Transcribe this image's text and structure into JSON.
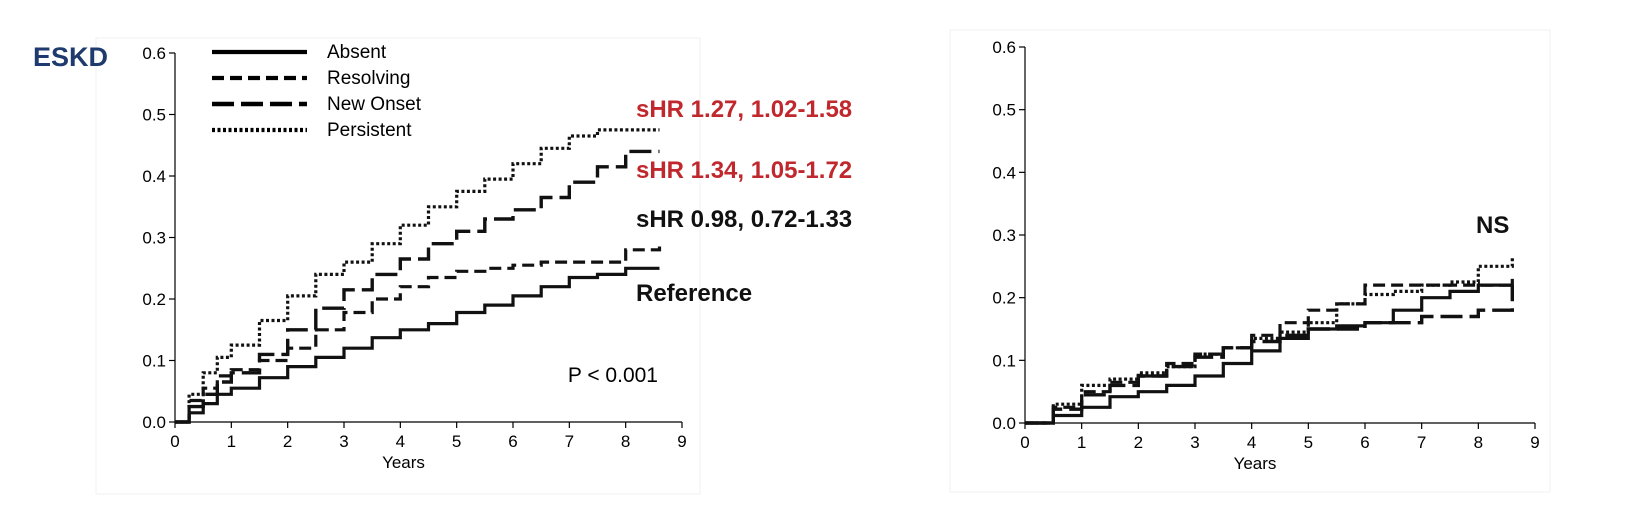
{
  "page": {
    "label_left": "ESKD"
  },
  "legend": [
    "Absent",
    "Resolving",
    "New Onset",
    "Persistent"
  ],
  "styles": {
    "Absent": {
      "dash": "",
      "width": 3.2,
      "color": "#111111"
    },
    "Resolving": {
      "dash": "12 6",
      "width": 3.2,
      "color": "#333333"
    },
    "New Onset": {
      "dash": "22 7",
      "width": 3.4,
      "color": "#222222"
    },
    "Persistent": {
      "dash": "3 2.5",
      "width": 3.2,
      "color": "#222222"
    }
  },
  "annotation_colors": {
    "red": "#c0282d",
    "black": "#111111"
  },
  "chart_data": [
    {
      "type": "line",
      "step": true,
      "xlabel": "Years",
      "ylabel": "",
      "xlim": [
        0,
        9
      ],
      "ylim": [
        0,
        0.6
      ],
      "xticks": [
        "0",
        "1",
        "2",
        "3",
        "4",
        "5",
        "6",
        "7",
        "8",
        "9"
      ],
      "yticks": [
        "0.0",
        "0.1",
        "0.2",
        "0.3",
        "0.4",
        "0.5",
        "0.6"
      ],
      "legend_position": "top-left",
      "p_value": "P < 0.001",
      "annotations": [
        {
          "text": "sHR 1.27, 1.02-1.58",
          "series": "Persistent",
          "color": "red"
        },
        {
          "text": "sHR 1.34, 1.05-1.72",
          "series": "New Onset",
          "color": "red"
        },
        {
          "text": "sHR 0.98, 0.72-1.33",
          "series": "Resolving",
          "color": "black"
        },
        {
          "text": "Reference",
          "series": "Absent",
          "color": "black"
        }
      ],
      "x": [
        0,
        0.25,
        0.5,
        0.75,
        1,
        1.5,
        2,
        2.5,
        3,
        3.5,
        4,
        4.5,
        5,
        5.5,
        6,
        6.5,
        7,
        7.5,
        8,
        8.6
      ],
      "series": [
        {
          "name": "Absent",
          "values": [
            0,
            0.015,
            0.03,
            0.045,
            0.055,
            0.072,
            0.09,
            0.105,
            0.12,
            0.137,
            0.15,
            0.16,
            0.178,
            0.19,
            0.205,
            0.22,
            0.235,
            0.24,
            0.25,
            0.25
          ]
        },
        {
          "name": "Resolving",
          "values": [
            0,
            0.035,
            0.055,
            0.075,
            0.085,
            0.1,
            0.12,
            0.15,
            0.178,
            0.2,
            0.22,
            0.235,
            0.245,
            0.25,
            0.255,
            0.26,
            0.26,
            0.26,
            0.28,
            0.295
          ]
        },
        {
          "name": "New Onset",
          "values": [
            0,
            0.025,
            0.045,
            0.065,
            0.08,
            0.11,
            0.15,
            0.185,
            0.215,
            0.24,
            0.265,
            0.29,
            0.31,
            0.33,
            0.345,
            0.365,
            0.39,
            0.415,
            0.44,
            0.44
          ]
        },
        {
          "name": "Persistent",
          "values": [
            0,
            0.045,
            0.08,
            0.105,
            0.125,
            0.165,
            0.205,
            0.24,
            0.26,
            0.29,
            0.32,
            0.35,
            0.375,
            0.395,
            0.42,
            0.445,
            0.465,
            0.475,
            0.475,
            0.475
          ]
        }
      ]
    },
    {
      "type": "line",
      "step": true,
      "xlabel": "Years",
      "ylabel": "",
      "xlim": [
        0,
        9
      ],
      "ylim": [
        0,
        0.6
      ],
      "xticks": [
        "0",
        "1",
        "2",
        "3",
        "4",
        "5",
        "6",
        "7",
        "8",
        "9"
      ],
      "yticks": [
        "0.0",
        "0.1",
        "0.2",
        "0.3",
        "0.4",
        "0.5",
        "0.6"
      ],
      "annotations": [
        {
          "text": "NS",
          "color": "black"
        }
      ],
      "x": [
        0,
        0.5,
        1,
        1.5,
        2,
        2.5,
        3,
        3.5,
        4,
        4.5,
        5,
        5.5,
        6,
        6.5,
        7,
        7.5,
        8,
        8.6
      ],
      "series": [
        {
          "name": "Absent",
          "values": [
            0,
            0.012,
            0.025,
            0.042,
            0.05,
            0.06,
            0.075,
            0.095,
            0.115,
            0.135,
            0.15,
            0.155,
            0.16,
            0.18,
            0.2,
            0.21,
            0.22,
            0.23
          ]
        },
        {
          "name": "Resolving",
          "values": [
            0,
            0.025,
            0.05,
            0.065,
            0.075,
            0.095,
            0.11,
            0.12,
            0.14,
            0.16,
            0.18,
            0.19,
            0.22,
            0.22,
            0.22,
            0.22,
            0.22,
            0.22
          ]
        },
        {
          "name": "New Onset",
          "values": [
            0,
            0.022,
            0.045,
            0.06,
            0.075,
            0.09,
            0.105,
            0.12,
            0.13,
            0.14,
            0.15,
            0.15,
            0.16,
            0.16,
            0.17,
            0.17,
            0.18,
            0.22
          ]
        },
        {
          "name": "Persistent",
          "values": [
            0,
            0.03,
            0.06,
            0.07,
            0.08,
            0.09,
            0.11,
            0.12,
            0.135,
            0.145,
            0.16,
            0.19,
            0.205,
            0.21,
            0.22,
            0.225,
            0.25,
            0.265
          ]
        }
      ]
    }
  ]
}
